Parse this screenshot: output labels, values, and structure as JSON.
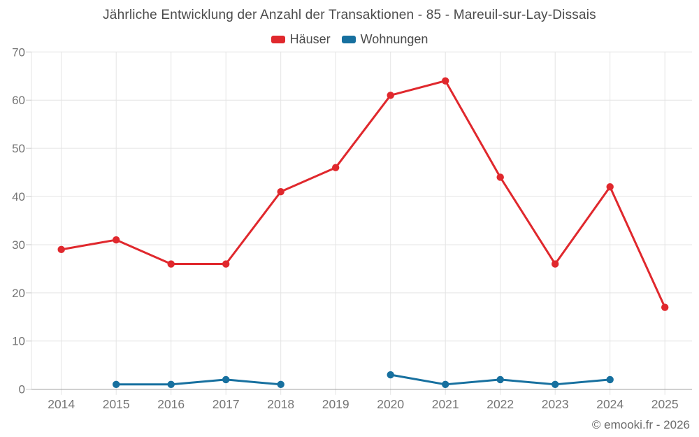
{
  "chart": {
    "title": "Jährliche Entwicklung der Anzahl der Transaktionen - 85 - Mareuil-sur-Lay-Dissais",
    "source": "© emooki.fr - 2026"
  },
  "chart_data": {
    "type": "line",
    "title": "Jährliche Entwicklung der Anzahl der Transaktionen - 85 - Mareuil-sur-Lay-Dissais",
    "categories": [
      "2014",
      "2015",
      "2016",
      "2017",
      "2018",
      "2019",
      "2020",
      "2021",
      "2022",
      "2023",
      "2024",
      "2025"
    ],
    "series": [
      {
        "name": "Häuser",
        "color": "#e0282d",
        "values": [
          29,
          31,
          26,
          26,
          41,
          46,
          61,
          64,
          44,
          26,
          42,
          17
        ]
      },
      {
        "name": "Wohnungen",
        "color": "#17709f",
        "values": [
          null,
          1,
          1,
          2,
          1,
          null,
          3,
          1,
          2,
          1,
          2,
          null
        ]
      }
    ],
    "xlabel": "",
    "ylabel": "",
    "ylim": [
      0,
      70
    ],
    "ytick_step": 10,
    "grid": true,
    "legend_position": "top",
    "colors": {
      "grid_line": "#e4e4e4",
      "axis_line": "#9b9b9b",
      "tick_mark": "#c9c9c9",
      "axis_text": "#757575"
    }
  }
}
